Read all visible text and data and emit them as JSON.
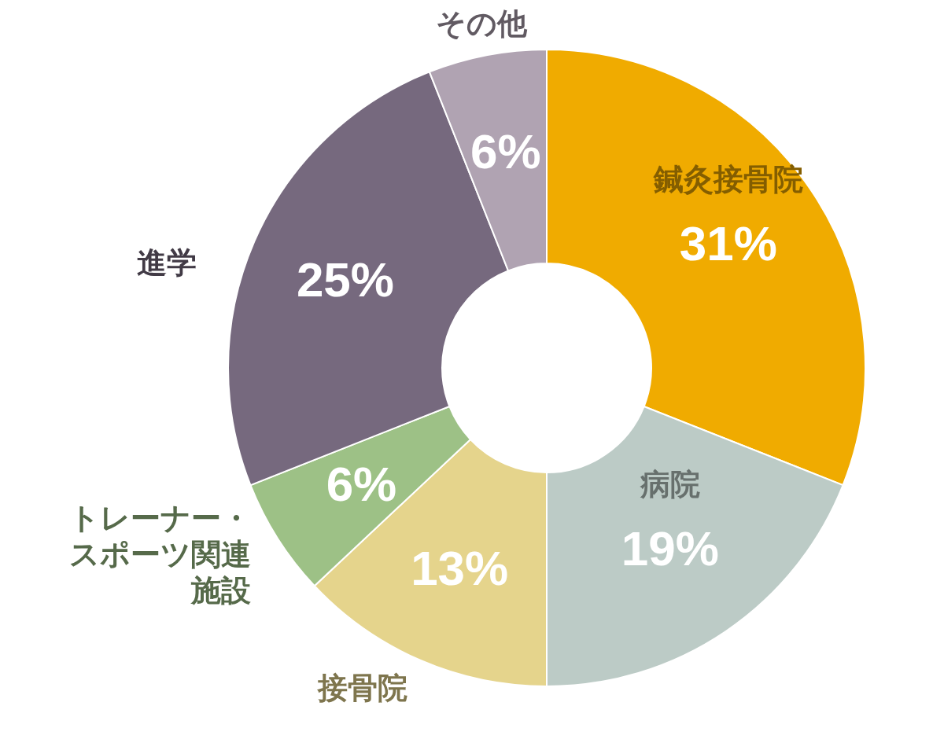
{
  "chart_data": {
    "type": "donut",
    "categories": [
      "鍼灸接骨院",
      "病院",
      "接骨院",
      "トレーナー・スポーツ関連施設",
      "進学",
      "その他"
    ],
    "values": [
      31,
      19,
      13,
      6,
      25,
      6
    ],
    "colors": [
      "#f0ab00",
      "#bccbc6",
      "#e5d48c",
      "#9dc186",
      "#76697e",
      "#b0a3b2"
    ],
    "value_labels": [
      "31%",
      "19%",
      "13%",
      "6%",
      "25%",
      "6%"
    ]
  }
}
